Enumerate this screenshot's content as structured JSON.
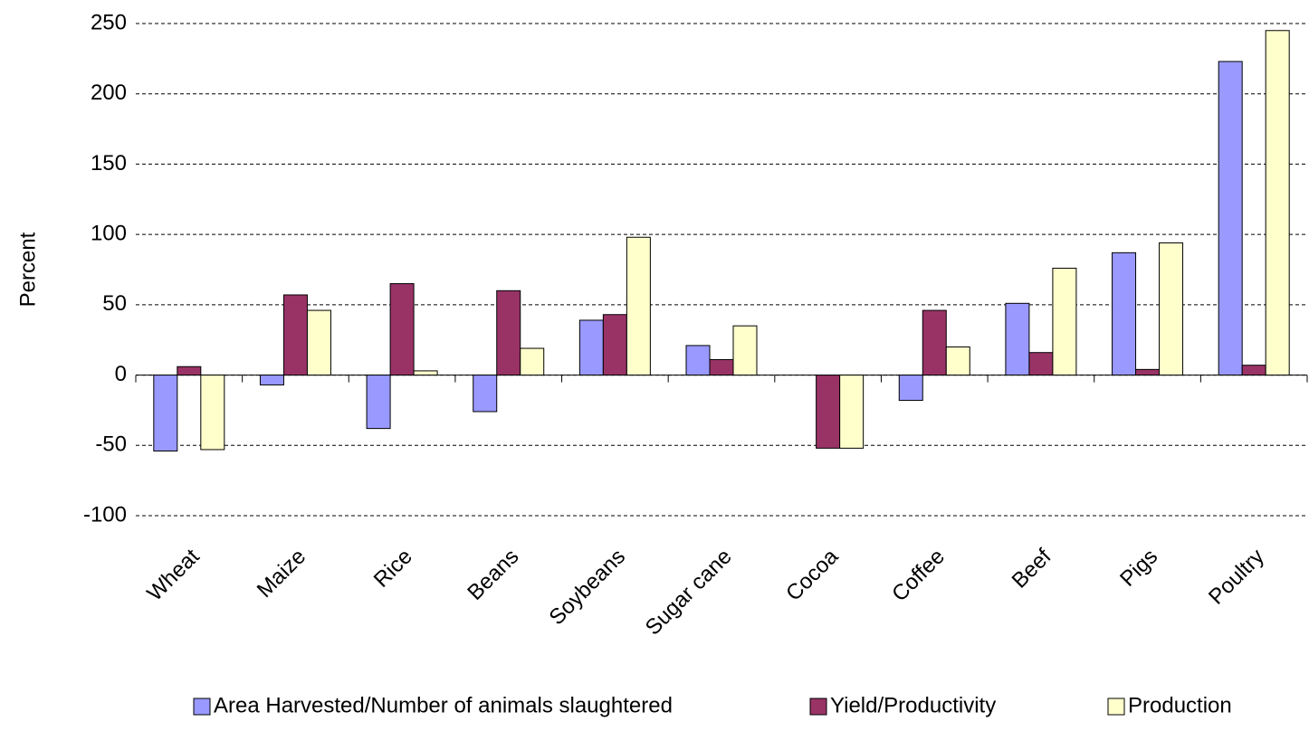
{
  "chart_data": {
    "type": "bar",
    "y_label": "Percent",
    "categories": [
      "Wheat",
      "Maize",
      "Rice",
      "Beans",
      "Soybeans",
      "Sugar cane",
      "Cocoa",
      "Coffee",
      "Beef",
      "Pigs",
      "Poultry"
    ],
    "series": [
      {
        "name": "Area Harvested/Number of animals slaughtered",
        "color": "#9999ff",
        "values": [
          -54,
          -7,
          -38,
          -26,
          39,
          21,
          0,
          -18,
          51,
          87,
          223
        ]
      },
      {
        "name": "Yield/Productivity",
        "color": "#993366",
        "values": [
          6,
          57,
          65,
          60,
          43,
          11,
          -52,
          46,
          16,
          4,
          7
        ]
      },
      {
        "name": "Production",
        "color": "#ffffcc",
        "values": [
          -53,
          46,
          3,
          19,
          98,
          35,
          -52,
          20,
          76,
          94,
          245
        ]
      }
    ],
    "ylim": [
      -100,
      250
    ],
    "yticks": [
      -100,
      -50,
      0,
      50,
      100,
      150,
      200,
      250
    ],
    "grid": true,
    "legend": "bottom"
  }
}
